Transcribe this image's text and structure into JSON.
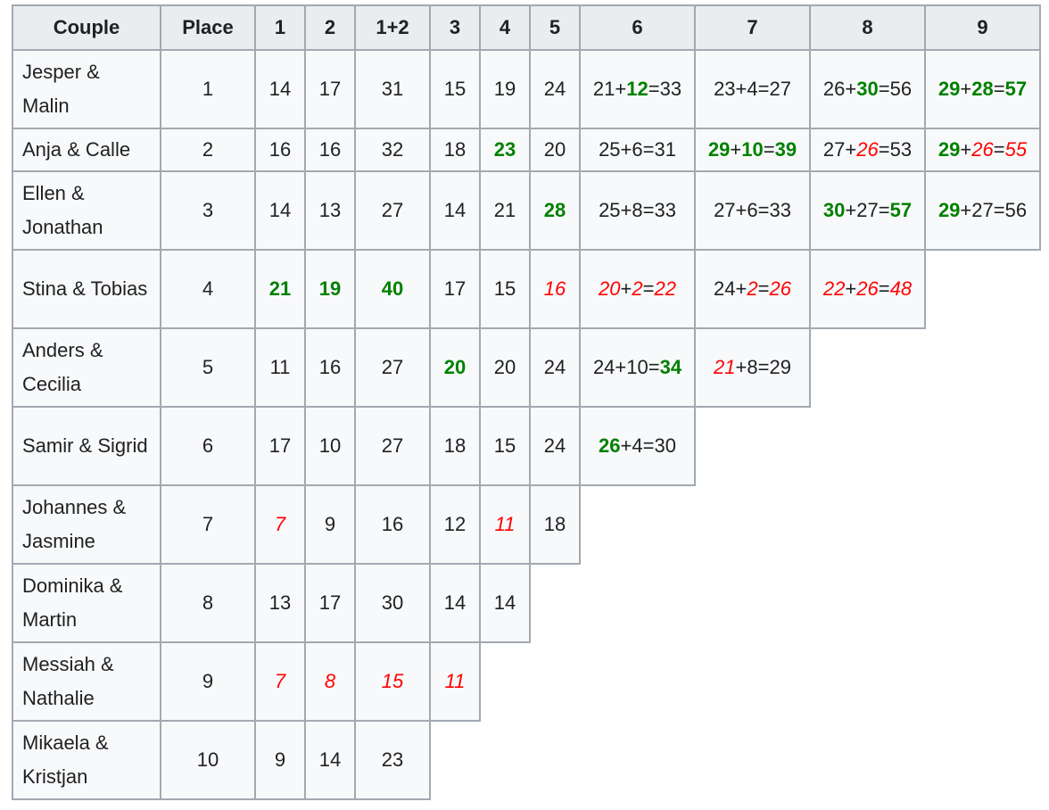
{
  "table": {
    "headers": [
      "Couple",
      "Place",
      "1",
      "2",
      "1+2",
      "3",
      "4",
      "5",
      "6",
      "7",
      "8",
      "9"
    ],
    "rows": [
      {
        "couple": "Jesper & Malin",
        "place": "1",
        "scores": [
          [
            {
              "t": "14"
            }
          ],
          [
            {
              "t": "17"
            }
          ],
          [
            {
              "t": "31"
            }
          ],
          [
            {
              "t": "15"
            }
          ],
          [
            {
              "t": "19"
            }
          ],
          [
            {
              "t": "24"
            }
          ],
          [
            {
              "t": "21+"
            },
            {
              "t": "12",
              "s": "g"
            },
            {
              "t": "=33"
            }
          ],
          [
            {
              "t": "23+4=27"
            }
          ],
          [
            {
              "t": "26+"
            },
            {
              "t": "30",
              "s": "g"
            },
            {
              "t": "=56"
            }
          ],
          [
            {
              "t": "29",
              "s": "g"
            },
            {
              "t": "+"
            },
            {
              "t": "28",
              "s": "g"
            },
            {
              "t": "="
            },
            {
              "t": "57",
              "s": "g"
            }
          ]
        ]
      },
      {
        "couple": "Anja & Calle",
        "place": "2",
        "scores": [
          [
            {
              "t": "16"
            }
          ],
          [
            {
              "t": "16"
            }
          ],
          [
            {
              "t": "32"
            }
          ],
          [
            {
              "t": "18"
            }
          ],
          [
            {
              "t": "23",
              "s": "g"
            }
          ],
          [
            {
              "t": "20"
            }
          ],
          [
            {
              "t": "25+6=31"
            }
          ],
          [
            {
              "t": "29",
              "s": "g"
            },
            {
              "t": "+"
            },
            {
              "t": "10",
              "s": "g"
            },
            {
              "t": "="
            },
            {
              "t": "39",
              "s": "g"
            }
          ],
          [
            {
              "t": "27+"
            },
            {
              "t": "26",
              "s": "r"
            },
            {
              "t": "=53"
            }
          ],
          [
            {
              "t": "29",
              "s": "g"
            },
            {
              "t": "+"
            },
            {
              "t": "26",
              "s": "r"
            },
            {
              "t": "="
            },
            {
              "t": "55",
              "s": "r"
            }
          ]
        ]
      },
      {
        "couple": "Ellen & Jonathan",
        "place": "3",
        "scores": [
          [
            {
              "t": "14"
            }
          ],
          [
            {
              "t": "13"
            }
          ],
          [
            {
              "t": "27"
            }
          ],
          [
            {
              "t": "14"
            }
          ],
          [
            {
              "t": "21"
            }
          ],
          [
            {
              "t": "28",
              "s": "g"
            }
          ],
          [
            {
              "t": "25+8=33"
            }
          ],
          [
            {
              "t": "27+6=33"
            }
          ],
          [
            {
              "t": "30",
              "s": "g"
            },
            {
              "t": "+27="
            },
            {
              "t": "57",
              "s": "g"
            }
          ],
          [
            {
              "t": "29",
              "s": "g"
            },
            {
              "t": "+27=56"
            }
          ]
        ]
      },
      {
        "couple": "Stina & Tobias",
        "place": "4",
        "scores": [
          [
            {
              "t": "21",
              "s": "g"
            }
          ],
          [
            {
              "t": "19",
              "s": "g"
            }
          ],
          [
            {
              "t": "40",
              "s": "g"
            }
          ],
          [
            {
              "t": "17"
            }
          ],
          [
            {
              "t": "15"
            }
          ],
          [
            {
              "t": "16",
              "s": "r"
            }
          ],
          [
            {
              "t": "20",
              "s": "r"
            },
            {
              "t": "+"
            },
            {
              "t": "2",
              "s": "r"
            },
            {
              "t": "="
            },
            {
              "t": "22",
              "s": "r"
            }
          ],
          [
            {
              "t": "24+"
            },
            {
              "t": "2",
              "s": "r"
            },
            {
              "t": "="
            },
            {
              "t": "26",
              "s": "r"
            }
          ],
          [
            {
              "t": "22",
              "s": "r"
            },
            {
              "t": "+"
            },
            {
              "t": "26",
              "s": "r"
            },
            {
              "t": "="
            },
            {
              "t": "48",
              "s": "r"
            }
          ]
        ]
      },
      {
        "couple": "Anders & Cecilia",
        "place": "5",
        "scores": [
          [
            {
              "t": "11"
            }
          ],
          [
            {
              "t": "16"
            }
          ],
          [
            {
              "t": "27"
            }
          ],
          [
            {
              "t": "20",
              "s": "g"
            }
          ],
          [
            {
              "t": "20"
            }
          ],
          [
            {
              "t": "24"
            }
          ],
          [
            {
              "t": "24+10="
            },
            {
              "t": "34",
              "s": "g"
            }
          ],
          [
            {
              "t": "21",
              "s": "r"
            },
            {
              "t": "+8=29"
            }
          ]
        ]
      },
      {
        "couple": "Samir & Sigrid",
        "place": "6",
        "scores": [
          [
            {
              "t": "17"
            }
          ],
          [
            {
              "t": "10"
            }
          ],
          [
            {
              "t": "27"
            }
          ],
          [
            {
              "t": "18"
            }
          ],
          [
            {
              "t": "15"
            }
          ],
          [
            {
              "t": "24"
            }
          ],
          [
            {
              "t": "26",
              "s": "g"
            },
            {
              "t": "+4=30"
            }
          ]
        ]
      },
      {
        "couple": "Johannes & Jasmine",
        "place": "7",
        "scores": [
          [
            {
              "t": "7",
              "s": "r"
            }
          ],
          [
            {
              "t": "9"
            }
          ],
          [
            {
              "t": "16"
            }
          ],
          [
            {
              "t": "12"
            }
          ],
          [
            {
              "t": "11",
              "s": "r"
            }
          ],
          [
            {
              "t": "18"
            }
          ]
        ]
      },
      {
        "couple": "Dominika & Martin",
        "place": "8",
        "scores": [
          [
            {
              "t": "13"
            }
          ],
          [
            {
              "t": "17"
            }
          ],
          [
            {
              "t": "30"
            }
          ],
          [
            {
              "t": "14"
            }
          ],
          [
            {
              "t": "14"
            }
          ]
        ]
      },
      {
        "couple": "Messiah & Nathalie",
        "place": "9",
        "scores": [
          [
            {
              "t": "7",
              "s": "r"
            }
          ],
          [
            {
              "t": "8",
              "s": "r"
            }
          ],
          [
            {
              "t": "15",
              "s": "r"
            }
          ],
          [
            {
              "t": "11",
              "s": "r"
            }
          ]
        ]
      },
      {
        "couple": "Mikaela & Kristjan",
        "place": "10",
        "scores": [
          [
            {
              "t": "9"
            }
          ],
          [
            {
              "t": "14"
            }
          ],
          [
            {
              "t": "23"
            }
          ]
        ]
      }
    ]
  },
  "colors": {
    "highest": "#008000",
    "lowest": "#ff0000",
    "header_bg": "#eaecf0",
    "border": "#a2a9b1"
  }
}
